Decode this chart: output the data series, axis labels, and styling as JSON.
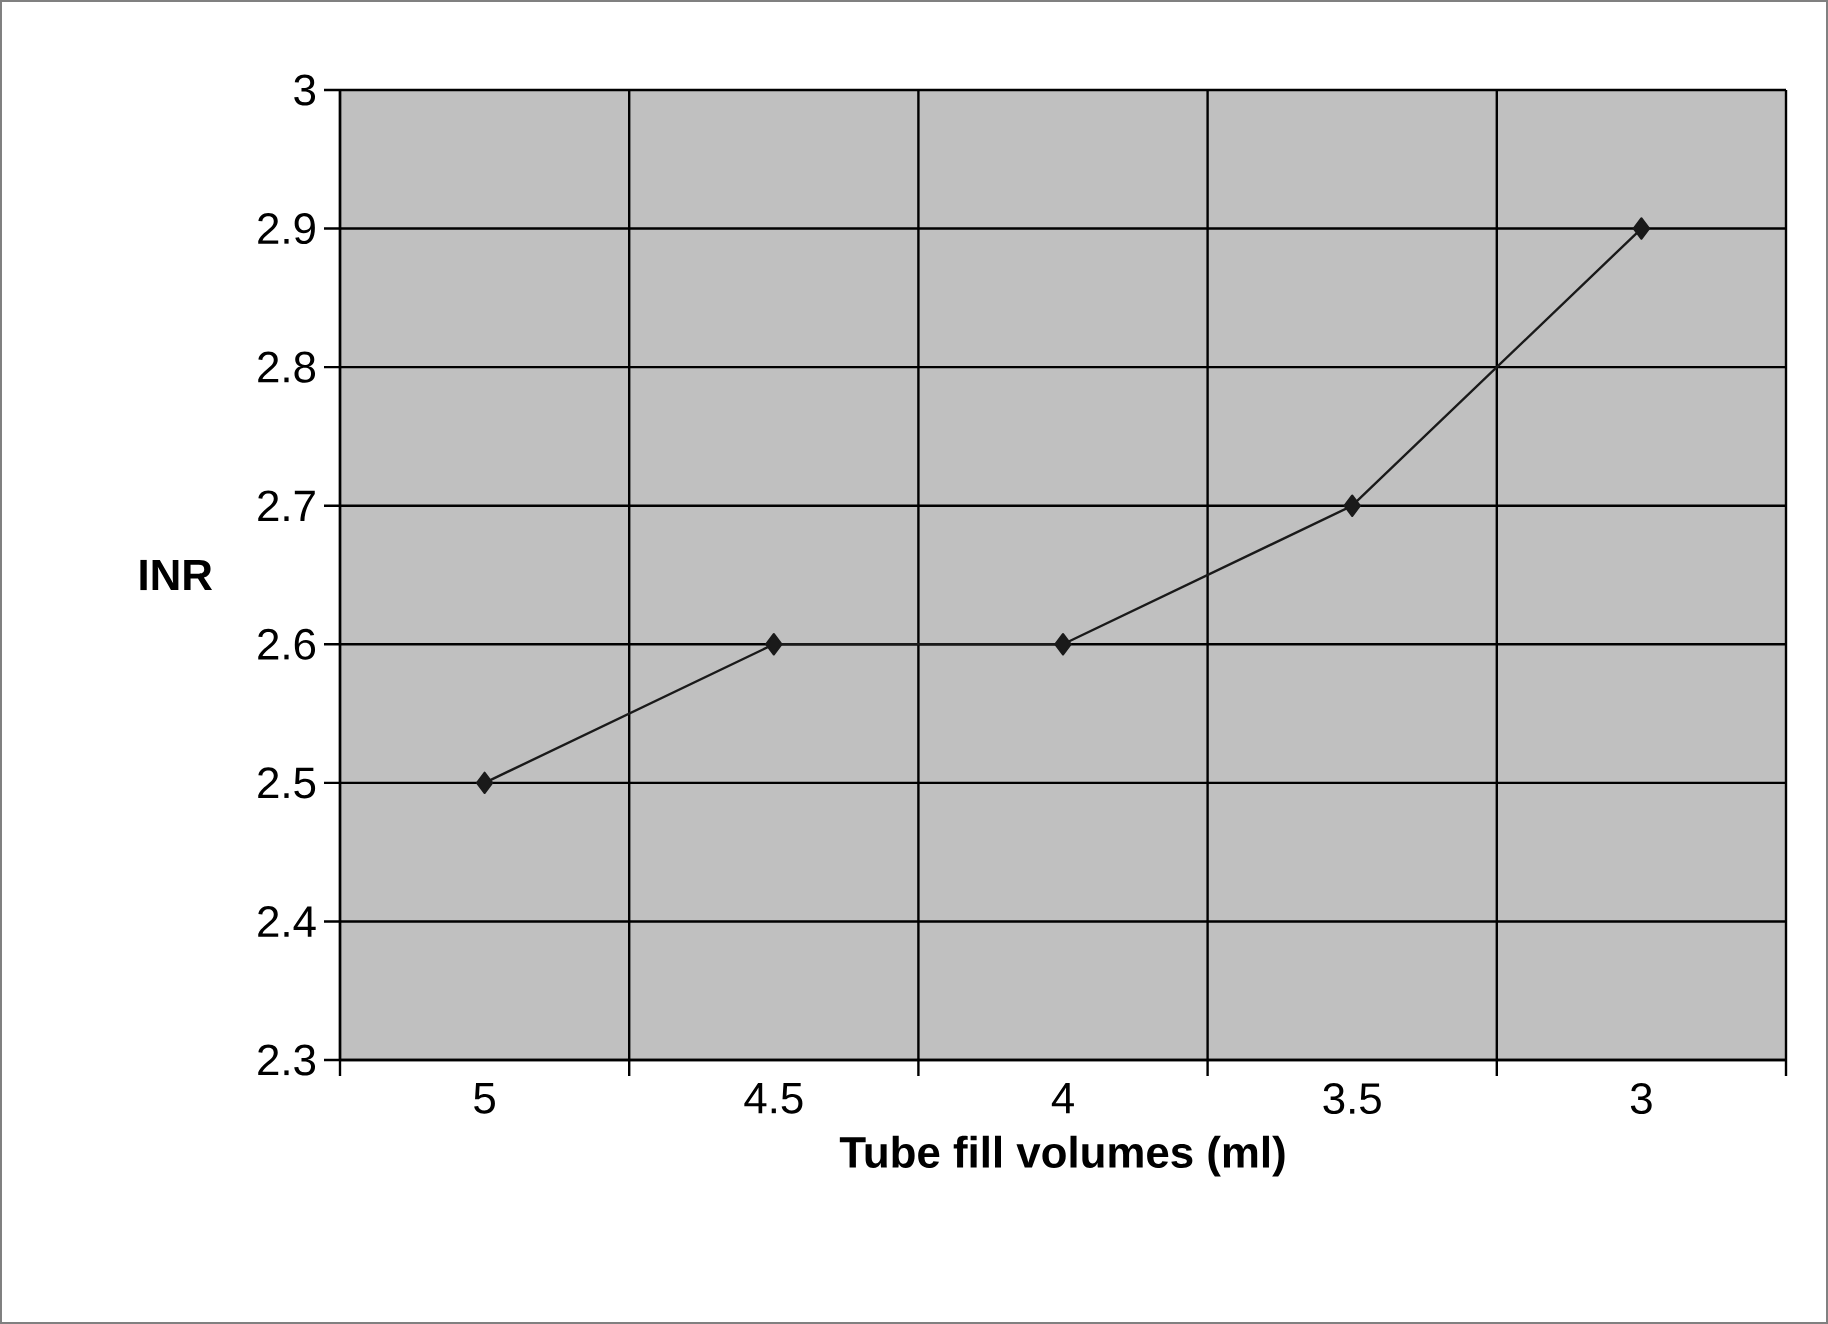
{
  "chart_data": {
    "type": "line",
    "xlabel": "Tube fill volumes (ml)",
    "ylabel": "INR",
    "categories": [
      "5",
      "4.5",
      "4",
      "3.5",
      "3"
    ],
    "series": [
      {
        "color": "#1a1a1a",
        "values": [
          2.5,
          2.6,
          2.6,
          2.7,
          2.9
        ]
      }
    ],
    "ylim": [
      2.3,
      3
    ],
    "yticks": [
      2.3,
      2.4,
      2.5,
      2.6,
      2.7,
      2.8,
      2.9,
      3
    ],
    "grid": true,
    "marker": "diamond",
    "line_style": "solid"
  }
}
